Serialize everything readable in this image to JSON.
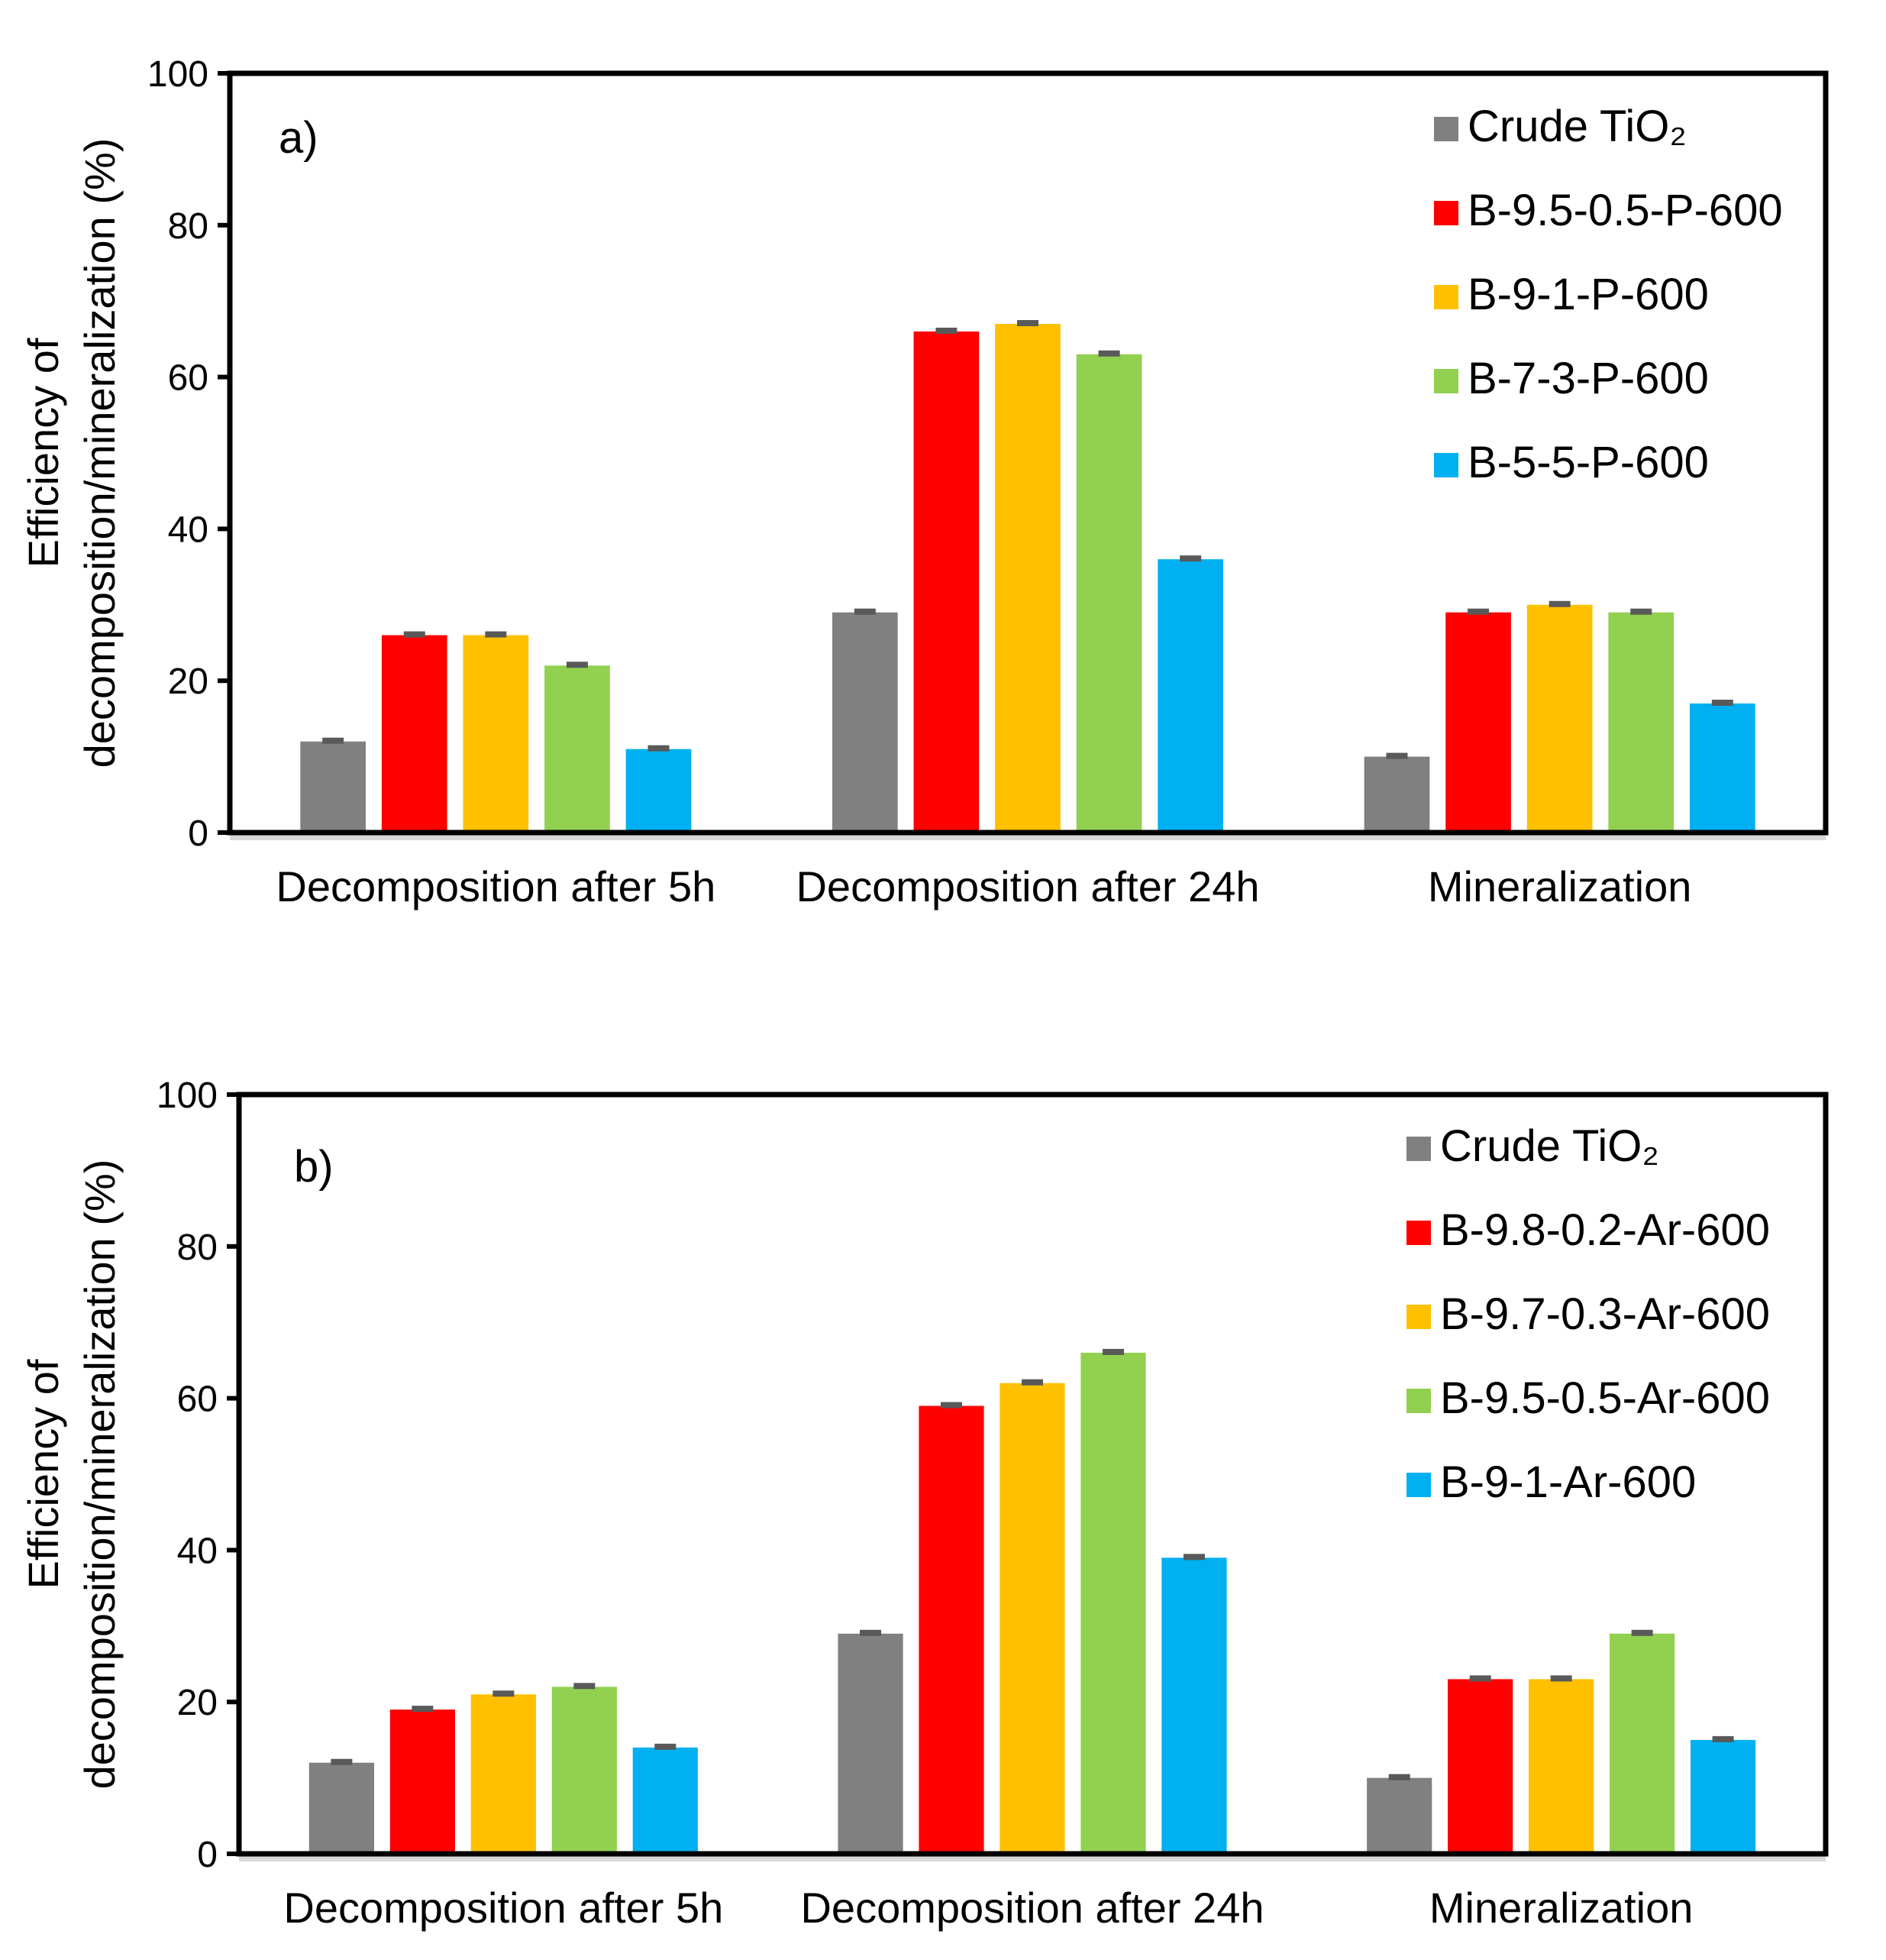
{
  "chart_data": [
    {
      "type": "bar",
      "panel_label": "a)",
      "ylabel_lines": [
        "Efficiency of",
        "decomposition/mineralization (%)"
      ],
      "xlabel": "",
      "ylim": [
        0,
        100
      ],
      "yticks": [
        "0",
        "20",
        "40",
        "60",
        "80",
        "100"
      ],
      "categories": [
        "Decomposition after 5h",
        "Decomposition after 24h",
        "Mineralization"
      ],
      "legend_position": "top-right",
      "grid": false,
      "error_bars": true,
      "series": [
        {
          "name": "Crude TiO₂",
          "color": "#808080",
          "values": [
            12,
            29,
            10
          ]
        },
        {
          "name": "B-9.5-0.5-P-600",
          "color": "#FF0000",
          "values": [
            26,
            66,
            29
          ]
        },
        {
          "name": "B-9-1-P-600",
          "color": "#FFC000",
          "values": [
            26,
            67,
            30
          ]
        },
        {
          "name": "B-7-3-P-600",
          "color": "#92D050",
          "values": [
            22,
            63,
            29
          ]
        },
        {
          "name": "B-5-5-P-600",
          "color": "#00B0F0",
          "values": [
            11,
            36,
            17
          ]
        }
      ]
    },
    {
      "type": "bar",
      "panel_label": "b)",
      "ylabel_lines": [
        "Efficiency of",
        "decomposition/mineralization (%)"
      ],
      "xlabel": "",
      "ylim": [
        0,
        100
      ],
      "yticks": [
        "0",
        "20",
        "40",
        "60",
        "80",
        "100"
      ],
      "categories": [
        "Decomposition after 5h",
        "Decomposition after 24h",
        "Mineralization"
      ],
      "legend_position": "top-right",
      "grid": false,
      "error_bars": true,
      "series": [
        {
          "name": "Crude TiO₂",
          "color": "#808080",
          "values": [
            12,
            29,
            10
          ]
        },
        {
          "name": "B-9.8-0.2-Ar-600",
          "color": "#FF0000",
          "values": [
            19,
            59,
            23
          ]
        },
        {
          "name": "B-9.7-0.3-Ar-600",
          "color": "#FFC000",
          "values": [
            21,
            62,
            23
          ]
        },
        {
          "name": "B-9.5-0.5-Ar-600",
          "color": "#92D050",
          "values": [
            22,
            66,
            29
          ]
        },
        {
          "name": "B-9-1-Ar-600",
          "color": "#00B0F0",
          "values": [
            14,
            39,
            15
          ]
        }
      ]
    }
  ]
}
